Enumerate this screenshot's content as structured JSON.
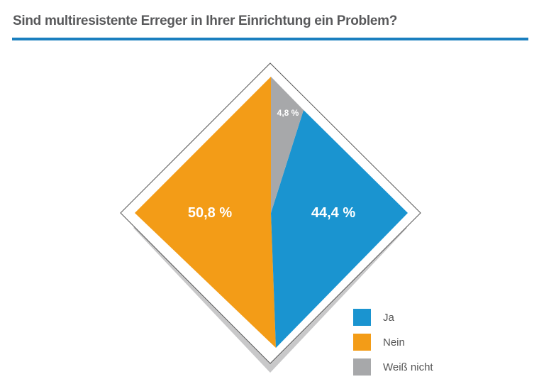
{
  "chart_data": {
    "type": "pie",
    "title": "Sind multiresistente Erreger in Ihrer Einrichtung ein Problem?",
    "slices": [
      {
        "name": "Ja",
        "value": 44.4,
        "label": "44,4 %",
        "color": "#1a94d0"
      },
      {
        "name": "Nein",
        "value": 50.8,
        "label": "50,8 %",
        "color": "#f39c17"
      },
      {
        "name": "Weiß nicht",
        "value": 4.8,
        "label": "4,8 %",
        "color": "#a7a8aa"
      }
    ],
    "legend_position": "bottom-right"
  }
}
